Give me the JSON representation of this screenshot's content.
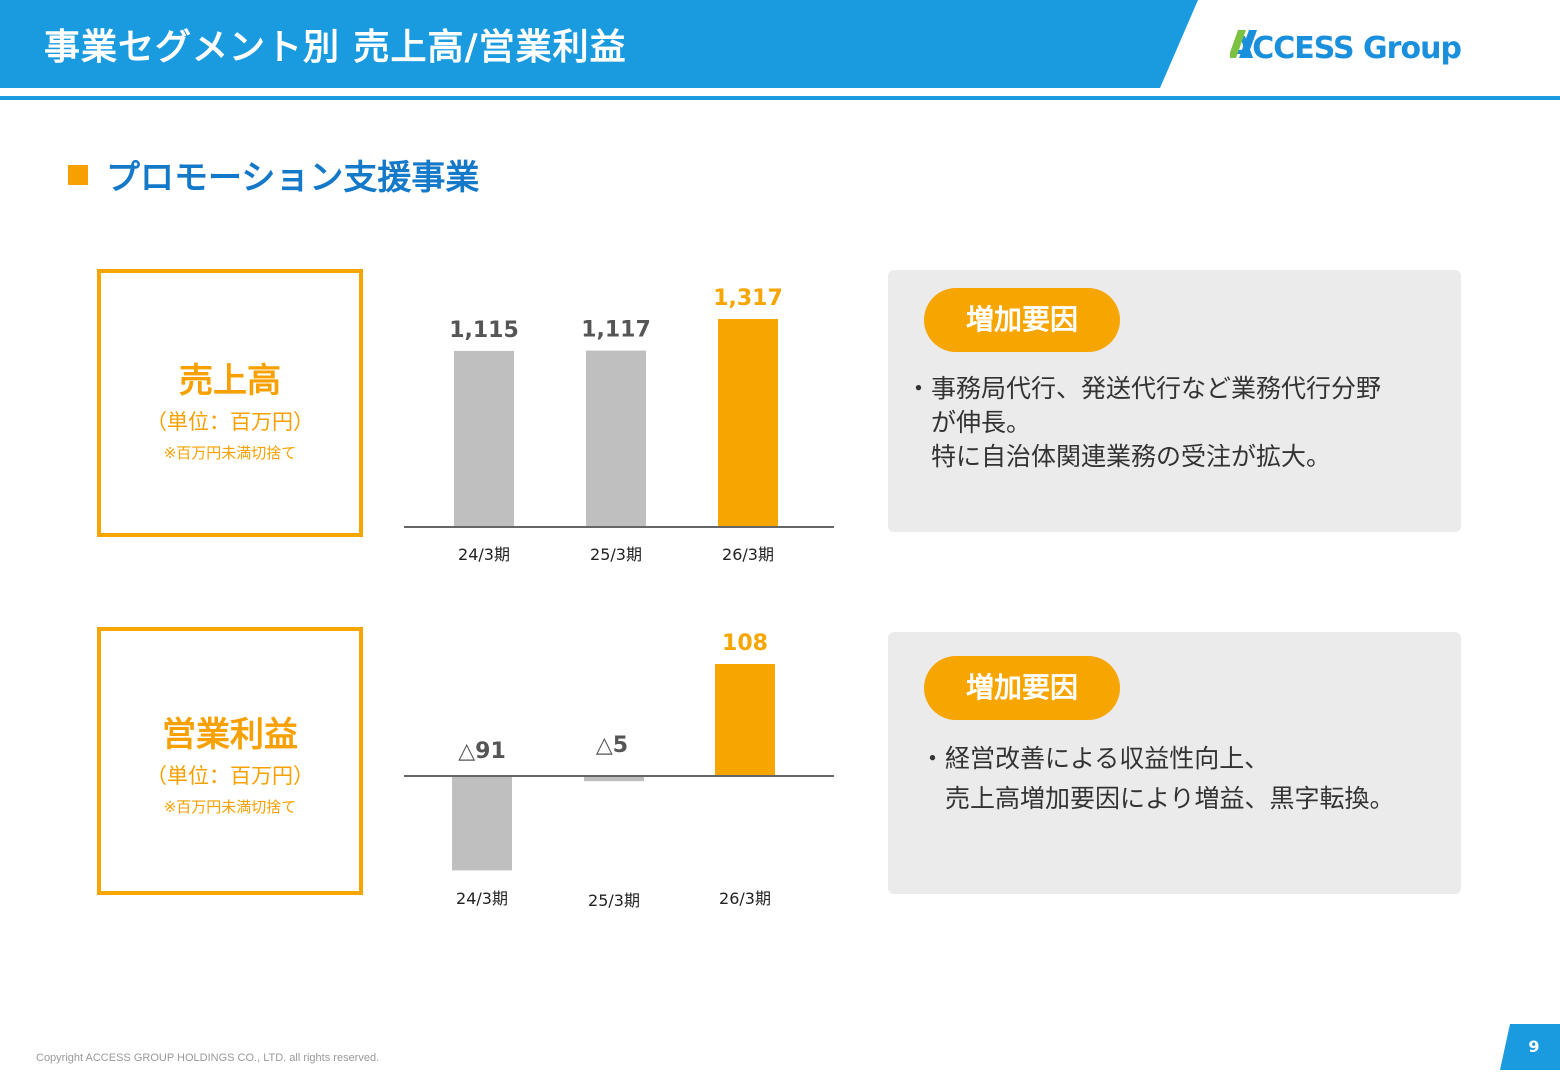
{
  "header": {
    "title": "事業セグメント別 売上高/営業利益",
    "logo_text": "ACCESS Group",
    "bar_color": "#1a9be0"
  },
  "section": {
    "title": "プロモーション支援事業"
  },
  "sales": {
    "label": "売上高",
    "unit": "（単位：百万円）",
    "note": "※百万円未満切捨て"
  },
  "profit": {
    "label": "営業利益",
    "unit": "（単位：百万円）",
    "note": "※百万円未満切捨て"
  },
  "chart_data": [
    {
      "type": "bar",
      "categories": [
        "24/3期",
        "25/3期",
        "26/3期"
      ],
      "values": [
        1115,
        1117,
        1317
      ],
      "value_labels": [
        "1,115",
        "1,117",
        "1,317"
      ],
      "highlight_index": 2,
      "ylim": [
        0,
        1400
      ]
    },
    {
      "type": "bar",
      "categories": [
        "24/3期",
        "25/3期",
        "26/3期"
      ],
      "values": [
        -91,
        -5,
        108
      ],
      "value_labels": [
        "△91",
        "△5",
        "108"
      ],
      "highlight_index": 2,
      "ylim": [
        -100,
        120
      ]
    }
  ],
  "factors_sales": {
    "badge": "増加要因",
    "lines": [
      "・事務局代行、発送代行など業務代行分野",
      "　が伸長。",
      "　特に自治体関連業務の受注が拡大。"
    ]
  },
  "factors_profit": {
    "badge": "増加要因",
    "lines": [
      "・経営改善による収益性向上、",
      "　売上高増加要因により増益、黒字転換。"
    ]
  },
  "footer": {
    "copyright": "Copyright ACCESS GROUP HOLDINGS CO., LTD. all rights reserved.",
    "page": "9"
  },
  "colors": {
    "accent": "#f7a500",
    "gray_bar": "#bfbfbf",
    "heading_blue": "#1479c9",
    "panel": "#ebebeb"
  }
}
